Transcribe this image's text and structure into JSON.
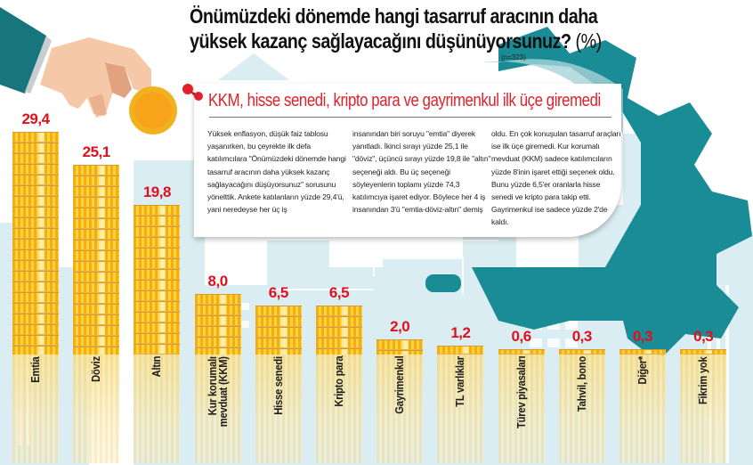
{
  "header": {
    "title_line1": "Önümüzdeki dönemde hangi tasarruf aracının daha",
    "title_line2": "yüksek kazanç sağlayacağını düşünüyorsunuz?",
    "title_unit": "(%)",
    "sample_size": "(n=323)"
  },
  "article": {
    "subheadline": "KKM, hisse senedi, kripto para ve gayrimenkul ilk üçe giremedi",
    "columns": [
      "Yüksek enflasyon, düşük faiz tablosu yaşanırken, bu çeyrekte ilk defa katılımcılara \"Önümüzdeki dönemde hangi tasarruf aracının daha yüksek kazanç sağlayacağını düşüyorsunuz\" sorusunu yönelttik. Ankete katılanların yüzde 29,4'ü, yani neredeyse her üç iş",
      "insanından biri soruyu \"emtia\" diyerek yanıtladı. İkinci sırayı yüzde 25,1 ile \"döviz\", üçüncü sırayı yüzde 19,8 ile \"altın\" seçeneği aldı. Bu üç seçeneği söyleyenlerin toplamı yüzde 74,3 katılımcıya işaret ediyor. Böylece her 4 iş insanından 3'ü \"emtia-döviz-altın\" demiş",
      "oldu. En çok konuşulan tasarruf araçları ise ilk üçe giremedi. Kur korumalı mevduat (KKM) sadece katılımcıların yüzde 8'inin işaret ettiği seçenek oldu. Bunu yüzde 6,5'er oranlarla hisse senedi  ve kripto para takip etti. Gayrimenkul ise sadece yüzde 2'de kaldı."
    ]
  },
  "colors": {
    "value_label": "#e1101c",
    "subheadline": "#e1212b",
    "gear": "#1a8c96",
    "coin": "#f5b820",
    "background_city": "#d7ebf0"
  },
  "chart_data": {
    "type": "bar",
    "title": "Önümüzdeki dönemde hangi tasarruf aracının daha yüksek kazanç sağlayacağını düşünüyorsunuz? (%)",
    "subtitle": "(n=323)",
    "xlabel": "",
    "ylabel": "%",
    "ylim": [
      0,
      30
    ],
    "grid": false,
    "legend": null,
    "categories": [
      "Emtia",
      "Döviz",
      "Altın",
      "Kur korumalı mevduat (KKM)",
      "Hisse senedi",
      "Kripto para",
      "Gayrimenkul",
      "TL varlıklar",
      "Türev piyasaları",
      "Tahvil, bono",
      "Diğer*",
      "Fikrim yok"
    ],
    "values": [
      29.4,
      25.1,
      19.8,
      8.0,
      6.5,
      6.5,
      2.0,
      1.2,
      0.6,
      0.3,
      0.3,
      0.3
    ],
    "value_labels": [
      "29,4",
      "25,1",
      "19,8",
      "8,0",
      "6,5",
      "6,5",
      "2,0",
      "1,2",
      "0,6",
      "0,3",
      "0,3",
      "0,3"
    ]
  }
}
